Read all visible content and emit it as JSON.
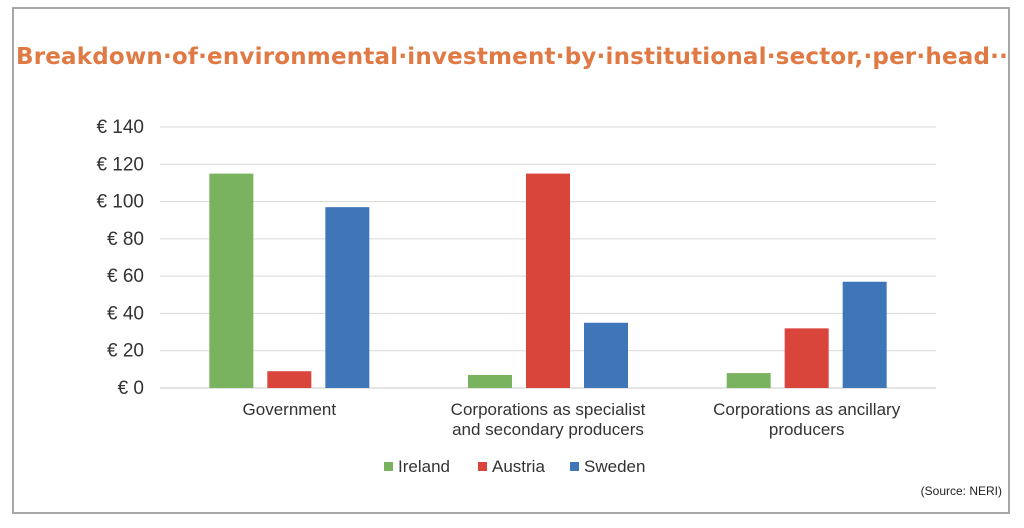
{
  "chart_data": {
    "type": "bar",
    "title": "Breakdown·of·environmental·investment·by·institutional·sector,·per·head··",
    "categories": [
      [
        "Government"
      ],
      [
        "Corporations as specialist",
        "and secondary producers"
      ],
      [
        "Corporations as ancillary",
        "producers"
      ]
    ],
    "series": [
      {
        "name": "Ireland",
        "color": "#7ab35f",
        "values": [
          115,
          7,
          8
        ]
      },
      {
        "name": "Austria",
        "color": "#d9443b",
        "values": [
          9,
          115,
          32
        ]
      },
      {
        "name": "Sweden",
        "color": "#3e76b8",
        "values": [
          97,
          35,
          57
        ]
      }
    ],
    "yticks": [
      "€ 0",
      "€ 20",
      "€ 40",
      "€ 60",
      "€ 80",
      "€ 100",
      "€ 120",
      "€ 140"
    ],
    "ylim": [
      0,
      140
    ],
    "grid": true,
    "legend": "bottom"
  },
  "source": "(Source: NERI)"
}
